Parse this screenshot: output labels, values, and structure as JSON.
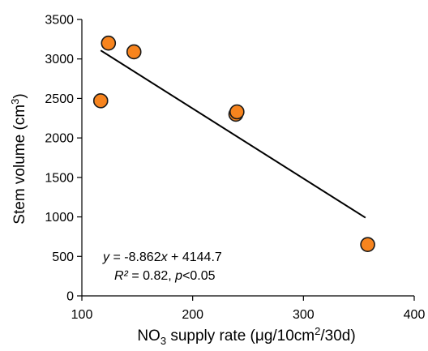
{
  "chart_data": {
    "type": "scatter",
    "title": "",
    "xlabel": {
      "prefix": "NO",
      "sub": "3",
      "main": " supply rate (μg/10cm",
      "sup": "2",
      "suffix": "/30d)"
    },
    "ylabel": {
      "main": "Stem volume (cm",
      "sup": "3",
      "suffix": ")"
    },
    "xlim": [
      100,
      400
    ],
    "ylim": [
      0,
      3500
    ],
    "xticks": [
      100,
      200,
      300,
      400
    ],
    "yticks": [
      0,
      500,
      1000,
      1500,
      2000,
      2500,
      3000,
      3500
    ],
    "grid": false,
    "legend": "none",
    "marker_color": "#f7841e",
    "line_color": "#000000",
    "points": [
      {
        "x": 117,
        "y": 2470
      },
      {
        "x": 124,
        "y": 3200
      },
      {
        "x": 147,
        "y": 3090
      },
      {
        "x": 239,
        "y": 2300
      },
      {
        "x": 240,
        "y": 2330
      },
      {
        "x": 358,
        "y": 650
      }
    ],
    "trendline": {
      "slope": -8.862,
      "intercept": 4144.7,
      "x_range": [
        117,
        356
      ],
      "equation": {
        "y": "y",
        "eq_mid": " = -8.862",
        "x": "x",
        "eq_end": " + 4144.7"
      },
      "stats": {
        "r": "R²",
        "r_val": " = 0.82, ",
        "p": "p",
        "p_val": "<0.05"
      }
    }
  }
}
